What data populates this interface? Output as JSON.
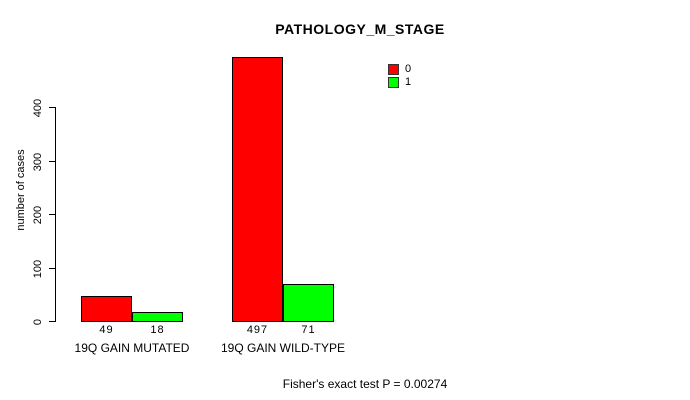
{
  "chart_data": {
    "type": "bar",
    "title": "PATHOLOGY_M_STAGE",
    "ylabel": "number of cases",
    "xlabel": "",
    "categories": [
      "19Q GAIN MUTATED",
      "19Q GAIN WILD-TYPE"
    ],
    "series": [
      {
        "name": "0",
        "color": "#FF0000",
        "values": [
          49,
          497
        ]
      },
      {
        "name": "1",
        "color": "#00FF00",
        "values": [
          18,
          71
        ]
      }
    ],
    "bar_count_labels": [
      "49",
      "18",
      "497",
      "71"
    ],
    "yticks": [
      "0",
      "100",
      "200",
      "300",
      "400"
    ],
    "ylim": [
      0,
      400
    ],
    "grid": false,
    "legend_position": "top-right",
    "footer": "Fisher's exact test P = 0.00274"
  }
}
